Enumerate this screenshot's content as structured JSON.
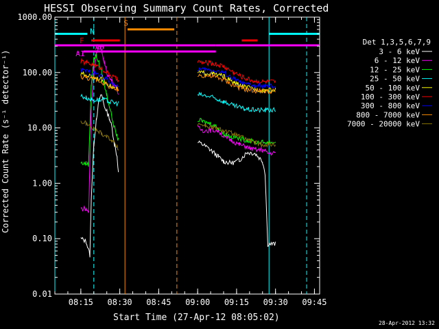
{
  "chart_data": {
    "type": "line",
    "title": "HESSI Observing Summary Count Rates, Corrected",
    "xlabel": "Start Time (27-Apr-12 08:05:02)",
    "ylabel": "Corrected Count Rate (s⁻¹ detector⁻¹)",
    "x_ticks": [
      "08:15",
      "08:30",
      "08:45",
      "09:00",
      "09:15",
      "09:30",
      "09:45"
    ],
    "x_range": [
      "08:05",
      "09:47"
    ],
    "y_scale": "log",
    "y_ticks": [
      "0.01",
      "0.10",
      "1.00",
      "10.00",
      "100.00",
      "1000.00"
    ],
    "ylim": [
      0.01,
      1000
    ],
    "timestamp": "28-Apr-2012 13:32",
    "legend": {
      "header": "Det 1,3,5,6,7,9",
      "placement": "right"
    },
    "series": [
      {
        "name": "3 - 6 keV",
        "color": "#ffffff",
        "x": [
          "08:15",
          "08:17",
          "08:18:30",
          "08:19",
          "08:20",
          "08:21",
          "08:22",
          "08:23",
          "08:24",
          "08:25",
          "08:26",
          "08:27",
          "08:28",
          "08:29",
          "08:29:30",
          "09:00",
          "09:02",
          "09:05",
          "09:08",
          "09:10",
          "09:13",
          "09:16",
          "09:19",
          "09:22",
          "09:25",
          "09:26",
          "09:27",
          "09:30"
        ],
        "y": [
          0.1,
          0.09,
          0.05,
          0.5,
          5,
          15,
          30,
          40,
          25,
          20,
          15,
          10,
          5,
          3,
          1.5,
          5.5,
          5,
          4,
          3,
          2.5,
          2.3,
          2.6,
          3.6,
          3.5,
          2.5,
          1.5,
          0.08,
          0.08
        ]
      },
      {
        "name": "6 - 12 keV",
        "color": "#ff00ff",
        "x": [
          "08:15",
          "08:17",
          "08:18",
          "08:19",
          "08:20",
          "08:21",
          "08:22",
          "08:23",
          "08:24",
          "08:25",
          "08:26",
          "08:27",
          "08:28",
          "08:29",
          "08:29:30",
          "09:00",
          "09:02",
          "09:05",
          "09:08",
          "09:10",
          "09:13",
          "09:16",
          "09:19",
          "09:22",
          "09:25",
          "09:27",
          "09:30"
        ],
        "y": [
          0.35,
          0.35,
          0.3,
          20,
          120,
          250,
          300,
          230,
          160,
          100,
          80,
          70,
          60,
          50,
          40,
          10,
          9,
          9,
          9,
          7,
          6,
          5,
          4.5,
          4,
          4,
          3.5,
          3.5
        ]
      },
      {
        "name": "12 - 25 keV",
        "color": "#00ff00",
        "x": [
          "08:15",
          "08:17",
          "08:18",
          "08:19",
          "08:20",
          "08:21",
          "08:22",
          "08:23",
          "08:24",
          "08:25",
          "08:26",
          "08:27",
          "08:28",
          "08:29",
          "08:29:30",
          "09:00",
          "09:02",
          "09:05",
          "09:08",
          "09:10",
          "09:13",
          "09:16",
          "09:19",
          "09:22",
          "09:25",
          "09:27",
          "09:30"
        ],
        "y": [
          2.3,
          2.3,
          2.2,
          60,
          180,
          200,
          150,
          100,
          60,
          40,
          25,
          15,
          10,
          7,
          6,
          14,
          13,
          12,
          10,
          8,
          7,
          6.5,
          6,
          5.5,
          5.5,
          5.5,
          5.5
        ]
      },
      {
        "name": "25 - 50 keV",
        "color": "#00ffff",
        "x": [
          "08:15",
          "08:17",
          "08:19",
          "08:20",
          "08:22",
          "08:24",
          "08:26",
          "08:28",
          "08:29:30",
          "09:00",
          "09:03",
          "09:06",
          "09:10",
          "09:14",
          "09:18",
          "09:22",
          "09:26",
          "09:30"
        ],
        "y": [
          38,
          35,
          33,
          32,
          32,
          32,
          30,
          28,
          28,
          40,
          38,
          35,
          30,
          25,
          22,
          21,
          21,
          21
        ]
      },
      {
        "name": "50 - 100 keV",
        "color": "#ffff00",
        "x": [
          "08:15",
          "08:17",
          "08:19",
          "08:21",
          "08:23",
          "08:25",
          "08:27",
          "08:29",
          "08:29:30",
          "09:00",
          "09:03",
          "09:06",
          "09:10",
          "09:14",
          "09:18",
          "09:22",
          "09:26",
          "09:30"
        ],
        "y": [
          95,
          90,
          85,
          80,
          75,
          65,
          55,
          50,
          45,
          100,
          98,
          95,
          85,
          65,
          55,
          50,
          48,
          48
        ]
      },
      {
        "name": "100 - 300 keV",
        "color": "#ff0000",
        "x": [
          "08:15",
          "08:17",
          "08:19",
          "08:21",
          "08:23",
          "08:25",
          "08:27",
          "08:29",
          "08:29:30",
          "09:00",
          "09:03",
          "09:06",
          "09:10",
          "09:14",
          "09:18",
          "09:22",
          "09:26",
          "09:30"
        ],
        "y": [
          160,
          150,
          140,
          130,
          120,
          100,
          85,
          75,
          70,
          155,
          150,
          145,
          130,
          100,
          80,
          70,
          68,
          68
        ]
      },
      {
        "name": "300 - 800 keV",
        "color": "#0000ff",
        "x": [
          "08:15",
          "08:17",
          "08:19",
          "08:21",
          "08:23",
          "08:25",
          "08:27",
          "08:29",
          "08:29:30",
          "09:00",
          "09:03",
          "09:06",
          "09:10",
          "09:14",
          "09:18",
          "09:22",
          "09:26",
          "09:30"
        ],
        "y": [
          110,
          105,
          100,
          95,
          85,
          75,
          65,
          55,
          55,
          115,
          112,
          110,
          100,
          75,
          62,
          58,
          56,
          56
        ]
      },
      {
        "name": "800 - 7000 keV",
        "color": "#ff8c00",
        "x": [
          "08:15",
          "08:17",
          "08:19",
          "08:21",
          "08:23",
          "08:25",
          "08:27",
          "08:29",
          "08:29:30",
          "09:00",
          "09:03",
          "09:06",
          "09:10",
          "09:14",
          "09:18",
          "09:22",
          "09:26",
          "09:30"
        ],
        "y": [
          85,
          80,
          78,
          75,
          68,
          60,
          52,
          48,
          46,
          90,
          88,
          85,
          75,
          58,
          50,
          47,
          46,
          46
        ]
      },
      {
        "name": "7000 - 20000 keV",
        "color": "#8b7500",
        "x": [
          "08:15",
          "08:17",
          "08:19",
          "08:21",
          "08:23",
          "08:25",
          "08:27",
          "08:29",
          "08:29:30",
          "09:00",
          "09:03",
          "09:06",
          "09:10",
          "09:13",
          "09:16",
          "09:20",
          "09:24",
          "09:28",
          "09:30"
        ],
        "y": [
          13,
          12,
          10,
          9,
          8,
          7,
          6,
          4.5,
          4,
          12,
          11,
          10,
          9,
          8,
          7,
          6,
          5,
          5,
          5
        ]
      }
    ],
    "annotations": {
      "flags": [
        {
          "label": "N",
          "color": "#00ffff"
        },
        {
          "label": "F",
          "color": "#ff0000"
        },
        {
          "label": "S",
          "color": "#ff8c00"
        },
        {
          "label": "A0",
          "color": "#ff00ff"
        },
        {
          "label": "A1",
          "color": "#ff00ff"
        }
      ],
      "segments": [
        {
          "color": "#00ffff",
          "x": [
            "08:05",
            "08:17:30"
          ],
          "y": 500
        },
        {
          "color": "#00ffff",
          "x": [
            "09:27:30",
            "09:47"
          ],
          "y": 500
        },
        {
          "color": "#ff0000",
          "x": [
            "08:19",
            "08:30"
          ],
          "y": 380
        },
        {
          "color": "#ff0000",
          "x": [
            "09:17",
            "09:23"
          ],
          "y": 380
        },
        {
          "color": "#ff8c00",
          "x": [
            "08:33",
            "08:51"
          ],
          "y": 600
        },
        {
          "color": "#ff00ff",
          "x": [
            "08:05",
            "09:07"
          ],
          "y": 310
        },
        {
          "color": "#ff00ff",
          "x": [
            "09:07",
            "09:47"
          ],
          "y": 310
        },
        {
          "color": "#ff00ff",
          "x": [
            "08:16",
            "09:07"
          ],
          "y": 240
        }
      ],
      "vlines": [
        {
          "x": "08:05",
          "color": "#00ffff",
          "style": "solid"
        },
        {
          "x": "08:20",
          "color": "#00ffff",
          "style": "dashed"
        },
        {
          "x": "08:32",
          "color": "#ff8c00",
          "style": "solid"
        },
        {
          "x": "08:52",
          "color": "#ff8c00",
          "style": "dashed"
        },
        {
          "x": "09:27:30",
          "color": "#00ffff",
          "style": "solid"
        },
        {
          "x": "09:42",
          "color": "#00ffff",
          "style": "dashed"
        }
      ]
    }
  }
}
